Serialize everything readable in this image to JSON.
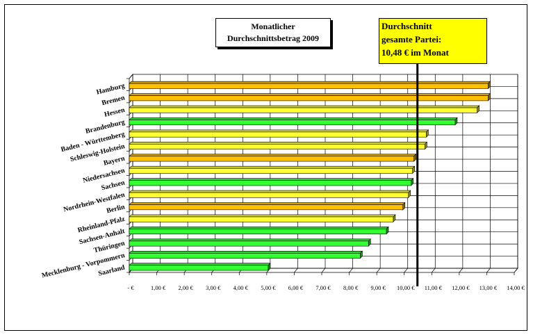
{
  "title_lines": [
    "Monatlicher",
    "Durchschnittsbetrag 2009"
  ],
  "average_note": {
    "lines": [
      "Durchschnitt",
      "gesamte Partei:",
      "10,48 € im Monat"
    ],
    "value": 10.48,
    "background": "#ffff00"
  },
  "chart_data": {
    "type": "bar",
    "orientation": "horizontal",
    "title": "Monatlicher Durchschnittsbetrag 2009",
    "categories": [
      "Hamburg",
      "Bremen",
      "Hessen",
      "Brandenburg",
      "Baden - Württemberg",
      "Schleswig-Holstein",
      "Bayern",
      "Niedersachsen",
      "Sachsen",
      "Nordrhein-Westfalen",
      "Berlin",
      "Rheinland-Pfalz",
      "Sachsen-Anhalt",
      "Thüringen",
      "Mecklenburg - Vorpommern",
      "Saarland"
    ],
    "values": [
      13.05,
      13.05,
      12.65,
      11.85,
      10.8,
      10.75,
      10.35,
      10.3,
      10.25,
      10.15,
      9.95,
      9.6,
      9.35,
      8.7,
      8.4,
      5.05
    ],
    "colors": [
      "#ffc000",
      "#ffc000",
      "#ffff33",
      "#33ff33",
      "#ffff33",
      "#ffff33",
      "#ffc000",
      "#ffff33",
      "#33ff33",
      "#ffff33",
      "#ffc000",
      "#ffff33",
      "#33ff33",
      "#33ff33",
      "#33ff33",
      "#33ff33"
    ],
    "xlim": [
      0,
      14
    ],
    "x_ticks": [
      "-  €",
      "1,00 €",
      "2,00 €",
      "3,00 €",
      "4,00 €",
      "5,00 €",
      "6,00 €",
      "7,00 €",
      "8,00 €",
      "9,00 €",
      "10,00 €",
      "11,00 €",
      "12,00 €",
      "13,00 €",
      "14,00 €"
    ],
    "average_line": 10.48,
    "grid": true,
    "legend": "none"
  }
}
